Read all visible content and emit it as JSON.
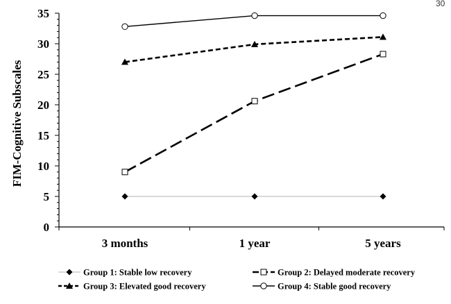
{
  "page_number": "30",
  "chart_data": {
    "type": "line",
    "categories": [
      "3 months",
      "1 year",
      "5 years"
    ],
    "ylabel": "FIM-Cognitive Subscales",
    "xlabel": "",
    "ylim": [
      0,
      35
    ],
    "yticks": [
      0,
      5,
      10,
      15,
      20,
      25,
      30,
      35
    ],
    "grid": false,
    "legend_position": "bottom",
    "series": [
      {
        "name": "Group 1: Stable low recovery",
        "values": [
          5,
          5,
          5
        ],
        "marker": "diamond-filled",
        "line": "solid-thin",
        "color": "#000000"
      },
      {
        "name": "Group 2: Delayed moderate recovery",
        "values": [
          9,
          20.6,
          28.3
        ],
        "marker": "square-open",
        "line": "long-dash",
        "color": "#000000"
      },
      {
        "name": "Group 3: Elevated good recovery",
        "values": [
          27,
          29.9,
          31.1
        ],
        "marker": "triangle-filled",
        "line": "short-dash",
        "color": "#000000"
      },
      {
        "name": "Group 4: Stable good recovery",
        "values": [
          32.8,
          34.6,
          34.6
        ],
        "marker": "circle-open",
        "line": "solid",
        "color": "#000000"
      }
    ]
  }
}
